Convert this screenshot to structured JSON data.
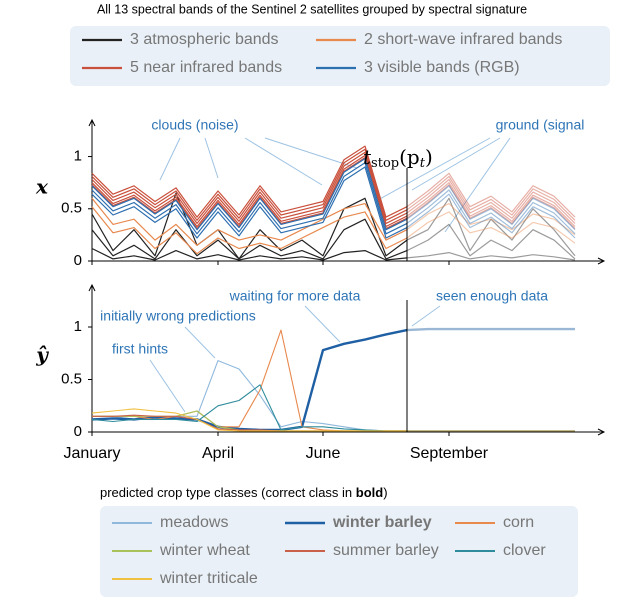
{
  "chart_data": [
    {
      "type": "line",
      "title": "All 13 spectral bands of the Sentinel 2 satellites grouped by spectral signature",
      "y_label": "x",
      "ylim": [
        0,
        1.35
      ],
      "yticks": [
        0,
        0.5,
        1
      ],
      "stop_index": 15,
      "stop_label": [
        "t",
        "stop",
        "(p",
        "t",
        ")"
      ],
      "annotations": [
        "clouds (noise)",
        "ground (signal"
      ],
      "series": [
        {
          "name": "3 atmospheric bands",
          "color": "#222222",
          "lines": [
            [
              0.45,
              0.1,
              0.3,
              0.05,
              0.65,
              0.15,
              0.3,
              0.02,
              0.3,
              0.1,
              0.2,
              0.05,
              0.5,
              0.6,
              0.05,
              0.2,
              0.3,
              0.6,
              0.1,
              0.4,
              0.2,
              0.5,
              0.3,
              0.05
            ],
            [
              0.3,
              0.05,
              0.15,
              0.02,
              0.3,
              0.05,
              0.2,
              0.02,
              0.15,
              0.05,
              0.1,
              0.02,
              0.3,
              0.4,
              0.02,
              0.1,
              0.2,
              0.35,
              0.05,
              0.2,
              0.1,
              0.3,
              0.2,
              0.02
            ],
            [
              0.12,
              0.02,
              0.05,
              0.01,
              0.1,
              0.02,
              0.06,
              0.01,
              0.05,
              0.02,
              0.04,
              0.01,
              0.08,
              0.1,
              0.01,
              0.03,
              0.05,
              0.08,
              0.02,
              0.05,
              0.03,
              0.06,
              0.04,
              0.01
            ]
          ]
        },
        {
          "name": "2 short-wave infrared bands",
          "color": "#e8894e",
          "lines": [
            [
              0.6,
              0.35,
              0.4,
              0.2,
              0.35,
              0.15,
              0.3,
              0.2,
              0.25,
              0.2,
              0.3,
              0.4,
              0.5,
              0.55,
              0.2,
              0.3,
              0.45,
              0.55,
              0.35,
              0.4,
              0.3,
              0.45,
              0.4,
              0.25
            ],
            [
              0.52,
              0.27,
              0.32,
              0.12,
              0.27,
              0.07,
              0.22,
              0.12,
              0.17,
              0.12,
              0.22,
              0.32,
              0.42,
              0.47,
              0.12,
              0.22,
              0.37,
              0.47,
              0.27,
              0.32,
              0.22,
              0.37,
              0.32,
              0.17
            ]
          ]
        },
        {
          "name": "5 near infrared bands",
          "color": "#c9503c",
          "lines": [
            [
              0.75,
              0.55,
              0.63,
              0.48,
              0.61,
              0.33,
              0.58,
              0.35,
              0.63,
              0.38,
              0.43,
              0.48,
              0.88,
              1.01,
              0.33,
              0.43,
              0.58,
              0.75,
              0.43,
              0.53,
              0.38,
              0.63,
              0.53,
              0.33
            ],
            [
              0.78,
              0.58,
              0.66,
              0.51,
              0.64,
              0.36,
              0.61,
              0.38,
              0.66,
              0.41,
              0.46,
              0.51,
              0.91,
              1.04,
              0.36,
              0.46,
              0.61,
              0.78,
              0.46,
              0.56,
              0.41,
              0.66,
              0.56,
              0.36
            ],
            [
              0.81,
              0.61,
              0.69,
              0.54,
              0.67,
              0.39,
              0.64,
              0.41,
              0.69,
              0.44,
              0.49,
              0.54,
              0.94,
              1.07,
              0.39,
              0.49,
              0.64,
              0.81,
              0.49,
              0.59,
              0.44,
              0.69,
              0.59,
              0.39
            ],
            [
              0.84,
              0.64,
              0.72,
              0.57,
              0.7,
              0.42,
              0.67,
              0.44,
              0.72,
              0.47,
              0.52,
              0.57,
              0.97,
              1.1,
              0.42,
              0.52,
              0.67,
              0.84,
              0.52,
              0.62,
              0.47,
              0.72,
              0.62,
              0.42
            ],
            [
              0.73,
              0.53,
              0.61,
              0.46,
              0.59,
              0.31,
              0.56,
              0.33,
              0.61,
              0.36,
              0.41,
              0.46,
              0.86,
              0.99,
              0.31,
              0.41,
              0.56,
              0.73,
              0.41,
              0.51,
              0.36,
              0.61,
              0.51,
              0.31
            ]
          ]
        },
        {
          "name": "3 visible bands (RGB)",
          "color": "#2e6fb0",
          "lines": [
            [
              0.72,
              0.52,
              0.6,
              0.45,
              0.58,
              0.3,
              0.55,
              0.32,
              0.6,
              0.35,
              0.4,
              0.45,
              0.85,
              0.98,
              0.3,
              0.4,
              0.55,
              0.72,
              0.4,
              0.5,
              0.35,
              0.6,
              0.5,
              0.3
            ],
            [
              0.68,
              0.48,
              0.56,
              0.41,
              0.54,
              0.26,
              0.51,
              0.28,
              0.56,
              0.31,
              0.36,
              0.41,
              0.81,
              0.94,
              0.26,
              0.36,
              0.51,
              0.68,
              0.36,
              0.46,
              0.31,
              0.56,
              0.46,
              0.26
            ],
            [
              0.64,
              0.44,
              0.52,
              0.37,
              0.5,
              0.22,
              0.47,
              0.24,
              0.52,
              0.27,
              0.32,
              0.37,
              0.77,
              0.9,
              0.22,
              0.32,
              0.47,
              0.64,
              0.32,
              0.42,
              0.27,
              0.52,
              0.42,
              0.22
            ]
          ]
        }
      ]
    },
    {
      "type": "line",
      "y_label": "ŷ",
      "categories": [
        "January",
        null,
        null,
        null,
        null,
        null,
        "April",
        null,
        null,
        null,
        null,
        "June",
        null,
        null,
        null,
        null,
        null,
        "September",
        null,
        null,
        null,
        null,
        null,
        null
      ],
      "ylim": [
        0,
        1.4
      ],
      "yticks": [
        0,
        0.5,
        1
      ],
      "stop_index": 15,
      "annotations": [
        "initially wrong predictions",
        "first hints",
        "waiting for more data",
        "seen enough data"
      ],
      "legend_title": [
        "predicted crop type classes (correct class in ",
        "bold",
        ")"
      ],
      "series": [
        {
          "name": "meadows",
          "color": "#8fb8dc",
          "values": [
            0.15,
            0.15,
            0.12,
            0.12,
            0.15,
            0.15,
            0.68,
            0.6,
            0.35,
            0.05,
            0.1,
            0.08,
            0.05,
            0.02,
            0.01,
            0.01,
            0.01,
            0.01,
            0.01,
            0.01,
            0.01,
            0.01,
            0.01,
            0.01
          ]
        },
        {
          "name": "winter barley",
          "color": "#1f5fa3",
          "correct": true,
          "values": [
            0.12,
            0.13,
            0.12,
            0.14,
            0.13,
            0.12,
            0.05,
            0.03,
            0.02,
            0.02,
            0.05,
            0.78,
            0.84,
            0.88,
            0.93,
            0.97,
            0.98,
            0.98,
            0.98,
            0.98,
            0.98,
            0.98,
            0.98,
            0.98
          ]
        },
        {
          "name": "corn",
          "color": "#e8894e",
          "values": [
            0.15,
            0.15,
            0.15,
            0.12,
            0.15,
            0.2,
            0.05,
            0.05,
            0.4,
            0.97,
            0.05,
            0.02,
            0.01,
            0.01,
            0.01,
            0.01,
            0.01,
            0.01,
            0.01,
            0.01,
            0.01,
            0.01,
            0.01,
            0.01
          ]
        },
        {
          "name": "winter wheat",
          "color": "#a9c25a",
          "values": [
            0.15,
            0.15,
            0.15,
            0.15,
            0.15,
            0.2,
            0.05,
            0.02,
            0.01,
            0.01,
            0.01,
            0.01,
            0.01,
            0.01,
            0.01,
            0.01,
            0.01,
            0.01,
            0.01,
            0.01,
            0.01,
            0.01,
            0.01,
            0.01
          ]
        },
        {
          "name": "summer barley",
          "color": "#c9604a",
          "values": [
            0.15,
            0.15,
            0.16,
            0.15,
            0.15,
            0.12,
            0.03,
            0.02,
            0.02,
            0.01,
            0.01,
            0.01,
            0.01,
            0.01,
            0.01,
            0.01,
            0.01,
            0.01,
            0.01,
            0.01,
            0.01,
            0.01,
            0.01,
            0.01
          ]
        },
        {
          "name": "clover",
          "color": "#2f8c9c",
          "values": [
            0.12,
            0.1,
            0.12,
            0.12,
            0.12,
            0.1,
            0.25,
            0.3,
            0.45,
            0.02,
            0.05,
            0.05,
            0.03,
            0.02,
            0.01,
            0.01,
            0.01,
            0.01,
            0.01,
            0.01,
            0.01,
            0.01,
            0.01,
            0.01
          ]
        },
        {
          "name": "winter triticale",
          "color": "#f0c040",
          "values": [
            0.18,
            0.2,
            0.22,
            0.2,
            0.18,
            0.12,
            0.02,
            0.01,
            0.01,
            0.01,
            0.01,
            0.01,
            0.01,
            0.01,
            0.01,
            0.01,
            0.01,
            0.01,
            0.01,
            0.01,
            0.01,
            0.01,
            0.01,
            0.01
          ]
        }
      ]
    }
  ]
}
